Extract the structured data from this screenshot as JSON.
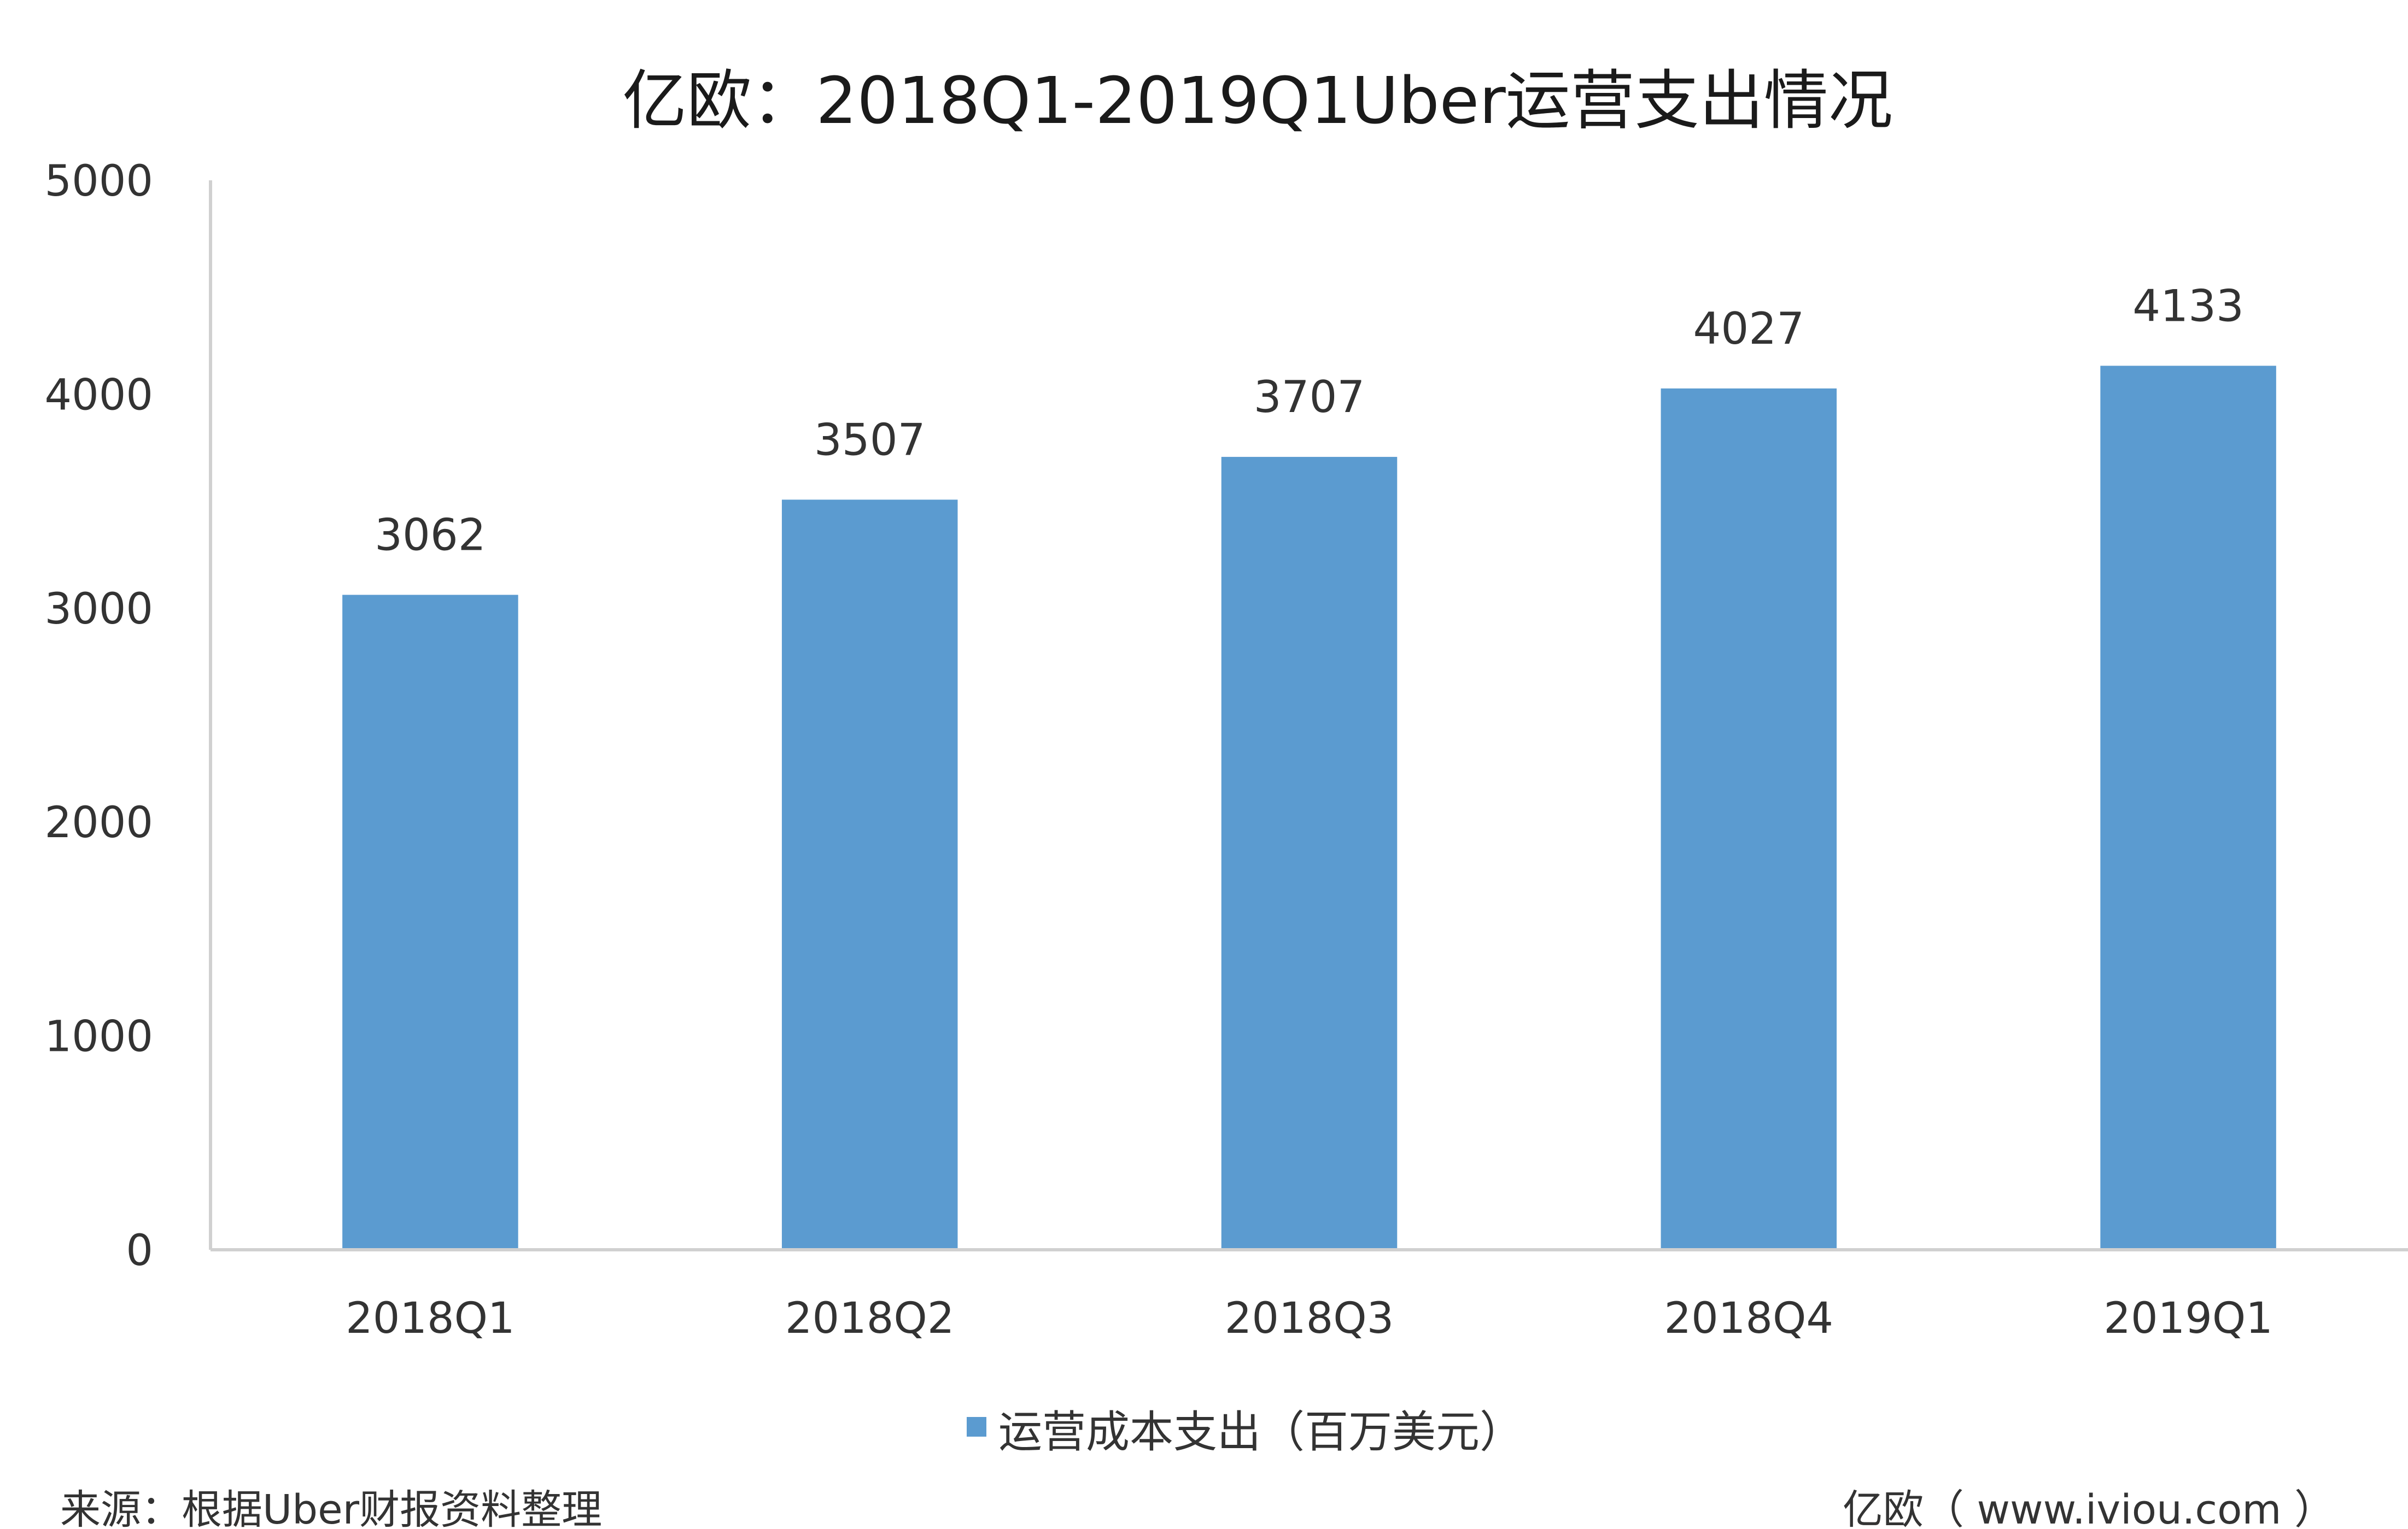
{
  "chart_data": {
    "type": "bar",
    "title": "亿欧：2018Q1-2019Q1Uber运营支出情况",
    "categories": [
      "2018Q1",
      "2018Q2",
      "2018Q3",
      "2018Q4",
      "2019Q1"
    ],
    "series": [
      {
        "name": "运营成本支出（百万美元）",
        "values": [
          3062,
          3507,
          3707,
          4027,
          4133
        ],
        "color": "#5B9BD0"
      }
    ],
    "ylim": [
      0,
      5000
    ],
    "yticks": [
      0,
      1000,
      2000,
      3000,
      4000,
      5000
    ],
    "xlabel": "",
    "ylabel": "",
    "grid": false,
    "legend_position": "bottom-center",
    "data_labels": true
  },
  "footer": {
    "source": "来源：根据Uber财报资料整理",
    "brand": "亿欧（ www.iviou.com ）"
  }
}
